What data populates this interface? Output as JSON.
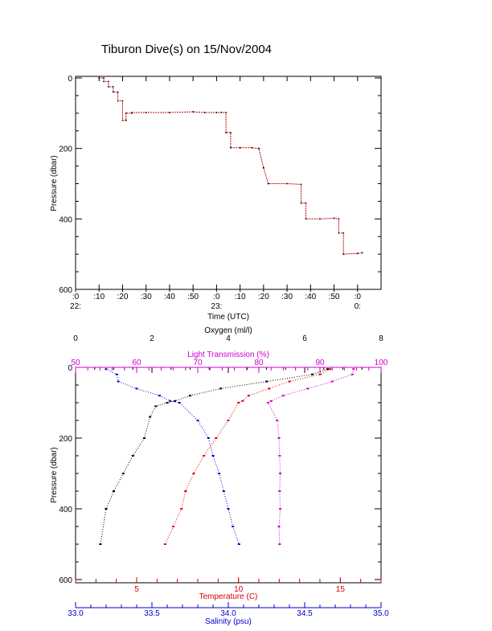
{
  "title": "Tiburon Dive(s) on 15/Nov/2004",
  "colors": {
    "axis": "#000000",
    "trace": "#cc0000",
    "oxygen": "#000000",
    "transmission": "#cc00cc",
    "temperature": "#dd0000",
    "salinity": "#0000cc"
  },
  "chart_data": [
    {
      "type": "line",
      "xlabel": "Time (UTC)",
      "ylabel": "Pressure (dbar)",
      "y_reversed": true,
      "ylim": [
        0,
        600
      ],
      "y_ticks": [
        "0",
        "200",
        "400",
        "600"
      ],
      "x_tick_labels": [
        {
          "minutes": 0,
          "text": ":0",
          "sub": "22:"
        },
        {
          "minutes": 10,
          "text": ":10",
          "sub": ""
        },
        {
          "minutes": 20,
          "text": ":20",
          "sub": ""
        },
        {
          "minutes": 30,
          "text": ":30",
          "sub": ""
        },
        {
          "minutes": 40,
          "text": ":40",
          "sub": ""
        },
        {
          "minutes": 50,
          "text": ":50",
          "sub": ""
        },
        {
          "minutes": 60,
          "text": ":0",
          "sub": "23:"
        },
        {
          "minutes": 70,
          "text": ":10",
          "sub": ""
        },
        {
          "minutes": 80,
          "text": ":20",
          "sub": ""
        },
        {
          "minutes": 90,
          "text": ":30",
          "sub": ""
        },
        {
          "minutes": 100,
          "text": ":40",
          "sub": ""
        },
        {
          "minutes": 110,
          "text": ":50",
          "sub": ""
        },
        {
          "minutes": 120,
          "text": ":0",
          "sub": "0:"
        }
      ],
      "xlim_minutes": [
        0,
        130
      ],
      "series": [
        {
          "minutes": [
            10,
            12,
            12,
            14,
            14,
            16,
            16,
            18,
            18,
            20,
            20,
            21.5,
            21.5,
            24,
            24,
            30,
            40,
            50,
            55,
            60,
            62,
            64,
            64,
            66,
            66,
            70,
            75,
            78,
            78,
            80,
            80,
            82,
            82,
            90,
            96,
            96,
            98,
            98,
            104,
            110,
            110,
            112,
            112,
            114,
            114,
            120,
            122
          ],
          "pressure": [
            0,
            0,
            10,
            10,
            25,
            25,
            40,
            40,
            65,
            65,
            120,
            120,
            100,
            100,
            98,
            98,
            98,
            96,
            98,
            98,
            98,
            98,
            155,
            155,
            198,
            198,
            198,
            200,
            200,
            255,
            255,
            300,
            300,
            300,
            302,
            355,
            355,
            400,
            400,
            398,
            398,
            400,
            440,
            440,
            500,
            498,
            496
          ]
        }
      ]
    },
    {
      "type": "scatter",
      "ylabel": "Pressure (dbar)",
      "y_reversed": true,
      "ylim": [
        0,
        600
      ],
      "y_ticks": [
        "0",
        "200",
        "400",
        "600"
      ],
      "axes": {
        "oxygen": {
          "label": "Oxygen (ml/l)",
          "range": [
            0,
            8
          ],
          "ticks": [
            "0",
            "2",
            "4",
            "6",
            "8"
          ]
        },
        "transmission": {
          "label": "Light Transmission (%)",
          "range": [
            50,
            100
          ],
          "ticks": [
            "50",
            "60",
            "70",
            "80",
            "90",
            "100"
          ]
        },
        "temperature": {
          "label": "Temperature (C)",
          "range": [
            2,
            17
          ],
          "ticks": [
            "5",
            "10",
            "15"
          ]
        },
        "salinity": {
          "label": "Salinity (psu)",
          "range": [
            33.0,
            35.0
          ],
          "ticks": [
            "33.0",
            "33.5",
            "34.0",
            "34.5",
            "35.0"
          ]
        }
      },
      "series": [
        {
          "name": "oxygen",
          "x": [
            6.6,
            6.2,
            5.0,
            3.8,
            3.0,
            2.6,
            2.4,
            2.1,
            1.95,
            1.8,
            1.5,
            1.25,
            1.0,
            0.8,
            0.65
          ],
          "pressure": [
            5,
            20,
            40,
            60,
            80,
            95,
            100,
            110,
            140,
            200,
            250,
            300,
            350,
            400,
            500
          ]
        },
        {
          "name": "transmission",
          "x": [
            95.5,
            95.3,
            92,
            88,
            84,
            82,
            81.5,
            83,
            83.3,
            83.4,
            83.5,
            83.4,
            83.5,
            83.3,
            83.4
          ],
          "pressure": [
            5,
            20,
            40,
            60,
            80,
            95,
            100,
            150,
            200,
            250,
            300,
            350,
            400,
            450,
            500
          ]
        },
        {
          "name": "temperature",
          "x": [
            14.5,
            14.0,
            12.5,
            11.5,
            10.5,
            10.2,
            10.0,
            9.5,
            8.9,
            8.3,
            7.8,
            7.4,
            7.2,
            6.8,
            6.4
          ],
          "pressure": [
            5,
            20,
            40,
            60,
            80,
            95,
            100,
            150,
            200,
            250,
            300,
            350,
            400,
            450,
            500
          ]
        },
        {
          "name": "salinity",
          "x": [
            33.2,
            33.27,
            33.28,
            33.4,
            33.55,
            33.62,
            33.68,
            33.8,
            33.87,
            33.9,
            33.94,
            33.97,
            34.0,
            34.03,
            34.07
          ],
          "pressure": [
            5,
            20,
            40,
            60,
            80,
            95,
            100,
            150,
            200,
            250,
            300,
            350,
            400,
            450,
            500
          ]
        }
      ]
    }
  ]
}
